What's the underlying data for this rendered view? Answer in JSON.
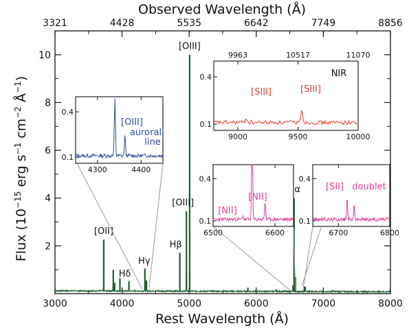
{
  "chart_data": {
    "type": "line",
    "xlabel": "Rest Wavelength (Å)",
    "ylabel": "Flux (10",
    "ylabel_sup1": "−15",
    "ylabel_mid": " erg s",
    "ylabel_sup2": "−1",
    "ylabel_mid2": " cm",
    "ylabel_sup3": "−2",
    "ylabel_mid3": " Å",
    "ylabel_sup4": "−1",
    "ylabel_end": ")",
    "top_xlabel": "Observed Wavelength (Å)",
    "xlim": [
      3000,
      8000
    ],
    "ylim": [
      0,
      11
    ],
    "x_ticks": [
      "3000",
      "4000",
      "5000",
      "6000",
      "7000",
      "8000"
    ],
    "x_tick_values": [
      3000,
      4000,
      5000,
      6000,
      7000,
      8000
    ],
    "y_ticks": [
      "2",
      "4",
      "6",
      "8",
      "10"
    ],
    "y_tick_values": [
      2,
      4,
      6,
      8,
      10
    ],
    "top_ticks": [
      "3321",
      "4428",
      "5535",
      "6642",
      "7749",
      "8856"
    ],
    "series": [
      {
        "color": "#1d5e2c",
        "continuum": 0.12,
        "lines": [
          {
            "x": 3727,
            "y": 2.25
          },
          {
            "x": 3869,
            "y": 1.0
          },
          {
            "x": 3889,
            "y": 0.45
          },
          {
            "x": 3968,
            "y": 0.65
          },
          {
            "x": 4102,
            "y": 0.5
          },
          {
            "x": 4340,
            "y": 1.05
          },
          {
            "x": 4363,
            "y": 0.55
          },
          {
            "x": 4861,
            "y": 1.7
          },
          {
            "x": 4959,
            "y": 3.45
          },
          {
            "x": 5007,
            "y": 10.0
          },
          {
            "x": 5876,
            "y": 0.25
          },
          {
            "x": 6300,
            "y": 0.18
          },
          {
            "x": 6548,
            "y": 0.35
          },
          {
            "x": 6563,
            "y": 4.0
          },
          {
            "x": 6584,
            "y": 0.7
          },
          {
            "x": 6717,
            "y": 0.3
          },
          {
            "x": 6731,
            "y": 0.28
          },
          {
            "x": 7136,
            "y": 0.15
          }
        ]
      }
    ],
    "annotations": [
      {
        "text": "[OIII]",
        "x": 5007,
        "y": 10.1
      },
      {
        "text": "[OIII]",
        "x": 4959,
        "y": 3.55
      },
      {
        "text": "[OII]",
        "x": 3727,
        "y": 2.35
      },
      {
        "text": "Hβ",
        "x": 4861,
        "y": 1.8
      },
      {
        "text": "Hγ",
        "x": 4340,
        "y": 1.1
      },
      {
        "text": "Hδ",
        "x": 4102,
        "y": 0.58
      },
      {
        "text": "Hα",
        "x": 6563,
        "y": 4.1
      }
    ],
    "insets": [
      {
        "name": "oiii-auroral",
        "color": "#2a4a9e",
        "xlim": [
          4250,
          4450
        ],
        "x_ticks": [
          "4300",
          "4400"
        ],
        "x_tick_values": [
          4300,
          4400
        ],
        "y_ticks": [
          "0.1",
          "0.4"
        ],
        "y_tick_values": [
          0.1,
          0.4
        ],
        "ylim": [
          0.06,
          0.5
        ],
        "labels": [
          "[OIII]",
          "auroral",
          "line"
        ],
        "lines": [
          {
            "x": 4340,
            "y": 0.48
          },
          {
            "x": 4363,
            "y": 0.24
          }
        ],
        "zoom_from": 4340
      },
      {
        "name": "nir",
        "color": "#e23a2a",
        "xlim": [
          8800,
          10000
        ],
        "x_ticks": [
          "9000",
          "9500",
          "10000"
        ],
        "x_tick_values": [
          9000,
          9500,
          10000
        ],
        "y_ticks": [
          "0.1",
          "0.4"
        ],
        "y_tick_values": [
          0.1,
          0.4
        ],
        "ylim": [
          0.06,
          0.5
        ],
        "top_ticks": [
          "9963",
          "10517",
          "11070"
        ],
        "tag": "NIR",
        "labels": [
          "[SIII]",
          "[SIII]"
        ],
        "lines": [
          {
            "x": 9069,
            "y": 0.14
          },
          {
            "x": 9531,
            "y": 0.2
          }
        ]
      },
      {
        "name": "nii-halpha",
        "color": "#e0399a",
        "xlim": [
          6500,
          6630
        ],
        "x_ticks": [
          "6500",
          "6600"
        ],
        "x_tick_values": [
          6500,
          6600
        ],
        "y_ticks": [
          "0.1",
          "0.4"
        ],
        "y_tick_values": [
          0.1,
          0.4
        ],
        "ylim": [
          0.06,
          0.5
        ],
        "labels": [
          "[NII]",
          "[NII]"
        ],
        "lines": [
          {
            "x": 6548,
            "y": 0.14
          },
          {
            "x": 6563,
            "y": 0.9
          },
          {
            "x": 6584,
            "y": 0.24
          }
        ],
        "zoom_from": 6563
      },
      {
        "name": "sii-doublet",
        "color": "#e0399a",
        "xlim": [
          6650,
          6800
        ],
        "x_ticks": [
          "6700",
          "6800"
        ],
        "x_tick_values": [
          6700,
          6800
        ],
        "y_ticks": [
          "0.1",
          "0.4"
        ],
        "y_tick_values": [
          0.1,
          0.4
        ],
        "ylim": [
          0.06,
          0.5
        ],
        "labels": [
          "[SII]",
          "doublet"
        ],
        "lines": [
          {
            "x": 6678,
            "y": 0.11
          },
          {
            "x": 6717,
            "y": 0.27
          },
          {
            "x": 6731,
            "y": 0.22
          }
        ],
        "zoom_from": 6724
      }
    ]
  }
}
